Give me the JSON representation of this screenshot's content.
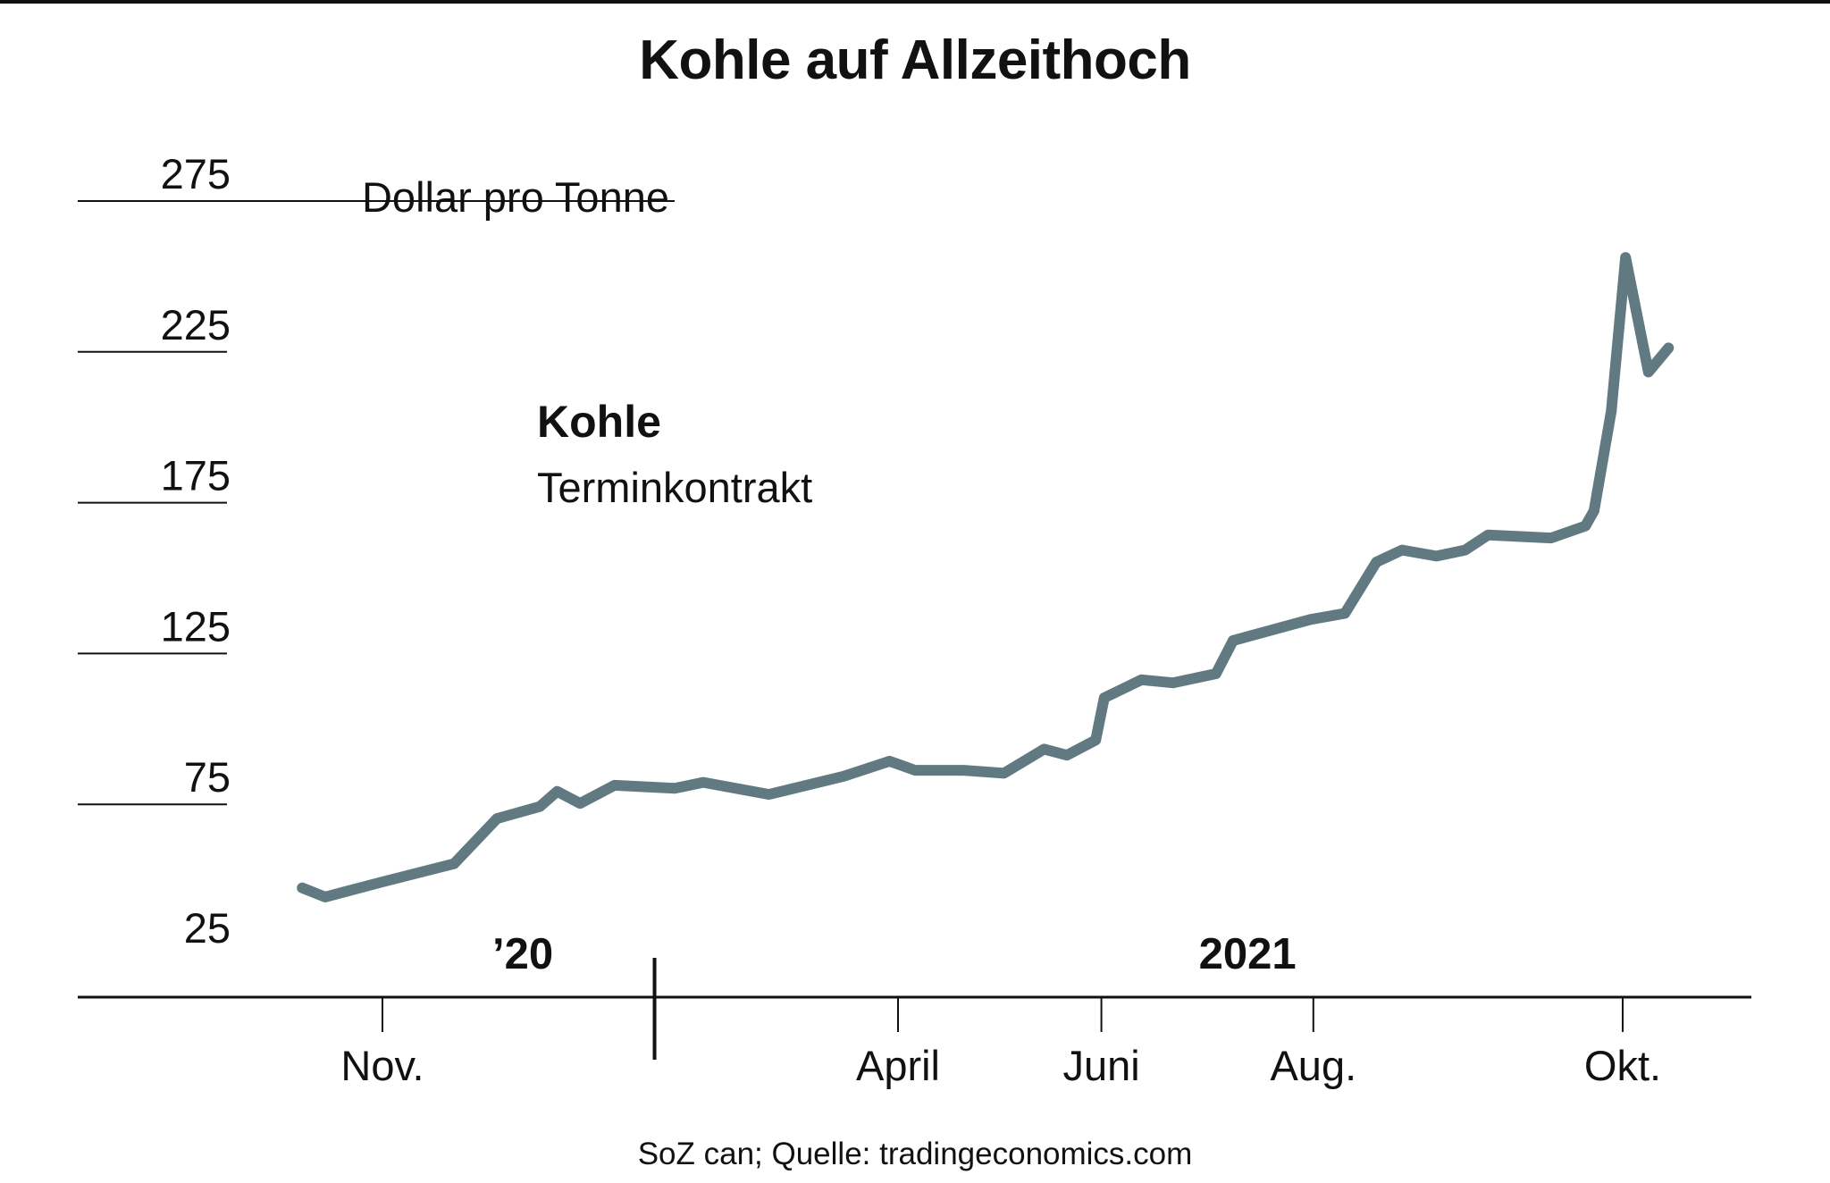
{
  "title": "Kohle auf Allzeithoch",
  "source": "SoZ can; Quelle: tradingeconomics.com",
  "colors": {
    "line": "#617a82",
    "text": "#111111",
    "background": "#ffffff"
  },
  "chart_data": {
    "type": "line",
    "title": "Kohle auf Allzeithoch",
    "unit_label": "Dollar pro Tonne",
    "series": [
      {
        "name": "Kohle",
        "sublabel": "Terminkontrakt",
        "color": "#617a82",
        "points": [
          [
            "2020-10-08",
            47
          ],
          [
            "2020-10-16",
            44
          ],
          [
            "2020-11-05",
            49
          ],
          [
            "2020-11-30",
            55
          ],
          [
            "2020-12-15",
            70
          ],
          [
            "2020-12-30",
            74
          ],
          [
            "2021-01-05",
            79
          ],
          [
            "2021-01-13",
            75
          ],
          [
            "2021-01-25",
            81
          ],
          [
            "2021-02-15",
            80
          ],
          [
            "2021-02-25",
            82
          ],
          [
            "2021-03-20",
            78
          ],
          [
            "2021-04-15",
            84
          ],
          [
            "2021-05-01",
            89
          ],
          [
            "2021-05-10",
            86
          ],
          [
            "2021-05-27",
            86
          ],
          [
            "2021-06-10",
            85
          ],
          [
            "2021-06-24",
            93
          ],
          [
            "2021-07-02",
            91
          ],
          [
            "2021-07-12",
            96
          ],
          [
            "2021-07-15",
            110
          ],
          [
            "2021-07-28",
            116
          ],
          [
            "2021-08-08",
            115
          ],
          [
            "2021-08-23",
            118
          ],
          [
            "2021-08-29",
            129
          ],
          [
            "2021-09-25",
            136
          ],
          [
            "2021-10-07",
            138
          ],
          [
            "2021-10-18",
            155
          ],
          [
            "2021-10-27",
            159
          ],
          [
            "2021-11-08",
            157
          ],
          [
            "2021-11-18",
            159
          ],
          [
            "2021-11-26",
            164
          ],
          [
            "2021-12-18",
            163
          ],
          [
            "2021-12-30",
            167
          ],
          [
            "2022-01-02",
            172
          ],
          [
            "2022-01-08",
            205
          ],
          [
            "2022-01-13",
            256
          ],
          [
            "2022-01-21",
            218
          ],
          [
            "2022-01-28",
            226
          ]
        ]
      }
    ],
    "y_ticks": [
      "275",
      "225",
      "175",
      "125",
      "75",
      "25"
    ],
    "ylim": [
      25,
      275
    ],
    "x_ticks": [
      {
        "label": "Nov.",
        "date": "2020-11-05"
      },
      {
        "label": "April",
        "date": "2021-05-04"
      },
      {
        "label": "Juni",
        "date": "2021-07-14"
      },
      {
        "label": "Aug.",
        "date": "2021-09-26"
      },
      {
        "label": "Okt.",
        "date": "2022-01-12"
      }
    ],
    "year_labels": [
      {
        "label": "’20",
        "date": "2020-12-24"
      },
      {
        "label": "2021",
        "date": "2021-09-03"
      }
    ],
    "year_divider_date": "2021-02-08",
    "grid": true,
    "legend": "inline"
  }
}
